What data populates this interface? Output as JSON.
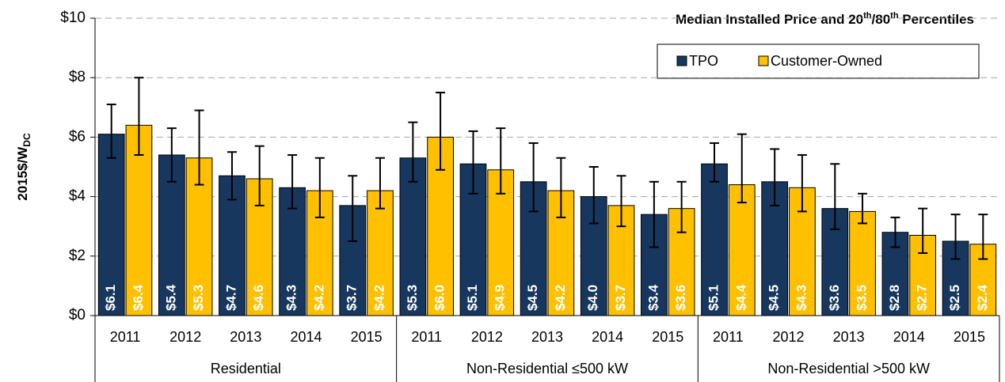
{
  "chart_data": {
    "type": "grouped-bar-errorbar",
    "title_parts": [
      "Median Installed Price and 20",
      "th",
      "/80",
      "th",
      " Percentiles"
    ],
    "y_label": "2015$/W",
    "y_label_sub": "DC",
    "groups": [
      {
        "label": "Residential",
        "categories": [
          "2011",
          "2012",
          "2013",
          "2014",
          "2015"
        ]
      },
      {
        "label": "Non-Residential ≤500 kW",
        "categories": [
          "2011",
          "2012",
          "2013",
          "2014",
          "2015"
        ]
      },
      {
        "label": "Non-Residential >500 kW",
        "categories": [
          "2011",
          "2012",
          "2013",
          "2014",
          "2015"
        ]
      }
    ],
    "series": [
      {
        "name": "TPO",
        "color": "#17375e",
        "values": [
          6.1,
          5.4,
          4.7,
          4.3,
          3.7,
          5.3,
          5.1,
          4.5,
          4.0,
          3.4,
          5.1,
          4.5,
          3.6,
          2.8,
          2.5
        ],
        "value_labels": [
          "$6.1",
          "$5.4",
          "$4.7",
          "$4.3",
          "$3.7",
          "$5.3",
          "$5.1",
          "$4.5",
          "$4.0",
          "$3.4",
          "$5.1",
          "$4.5",
          "$3.6",
          "$2.8",
          "$2.5"
        ],
        "low": [
          5.3,
          4.5,
          3.9,
          3.6,
          2.5,
          4.5,
          4.1,
          3.5,
          3.1,
          2.3,
          4.5,
          3.7,
          2.9,
          2.3,
          1.9
        ],
        "high": [
          7.1,
          6.3,
          5.5,
          5.4,
          4.7,
          6.5,
          6.2,
          5.8,
          5.0,
          4.5,
          5.8,
          5.6,
          5.1,
          3.3,
          3.4
        ]
      },
      {
        "name": "Customer-Owned",
        "color": "#ffc000",
        "values": [
          6.4,
          5.3,
          4.6,
          4.2,
          4.2,
          6.0,
          4.9,
          4.2,
          3.7,
          3.6,
          4.4,
          4.3,
          3.5,
          2.7,
          2.4
        ],
        "value_labels": [
          "$6.4",
          "$5.3",
          "$4.6",
          "$4.2",
          "$4.2",
          "$6.0",
          "$4.9",
          "$4.2",
          "$3.7",
          "$3.6",
          "$4.4",
          "$4.3",
          "$3.5",
          "$2.7",
          "$2.4"
        ],
        "low": [
          5.4,
          4.4,
          3.7,
          3.3,
          3.6,
          4.9,
          4.1,
          3.3,
          3.0,
          2.8,
          3.8,
          3.5,
          3.1,
          2.1,
          1.9
        ],
        "high": [
          8.0,
          6.9,
          5.7,
          5.3,
          5.3,
          7.5,
          6.3,
          5.3,
          4.7,
          4.5,
          6.1,
          5.4,
          4.1,
          3.6,
          3.4
        ]
      }
    ],
    "ylim": [
      0,
      10
    ],
    "yticks": [
      {
        "value": 0,
        "label": "$0"
      },
      {
        "value": 2,
        "label": "$2"
      },
      {
        "value": 4,
        "label": "$4"
      },
      {
        "value": 6,
        "label": "$6"
      },
      {
        "value": 8,
        "label": "$8"
      },
      {
        "value": 10,
        "label": "$10"
      }
    ],
    "grid": true
  }
}
